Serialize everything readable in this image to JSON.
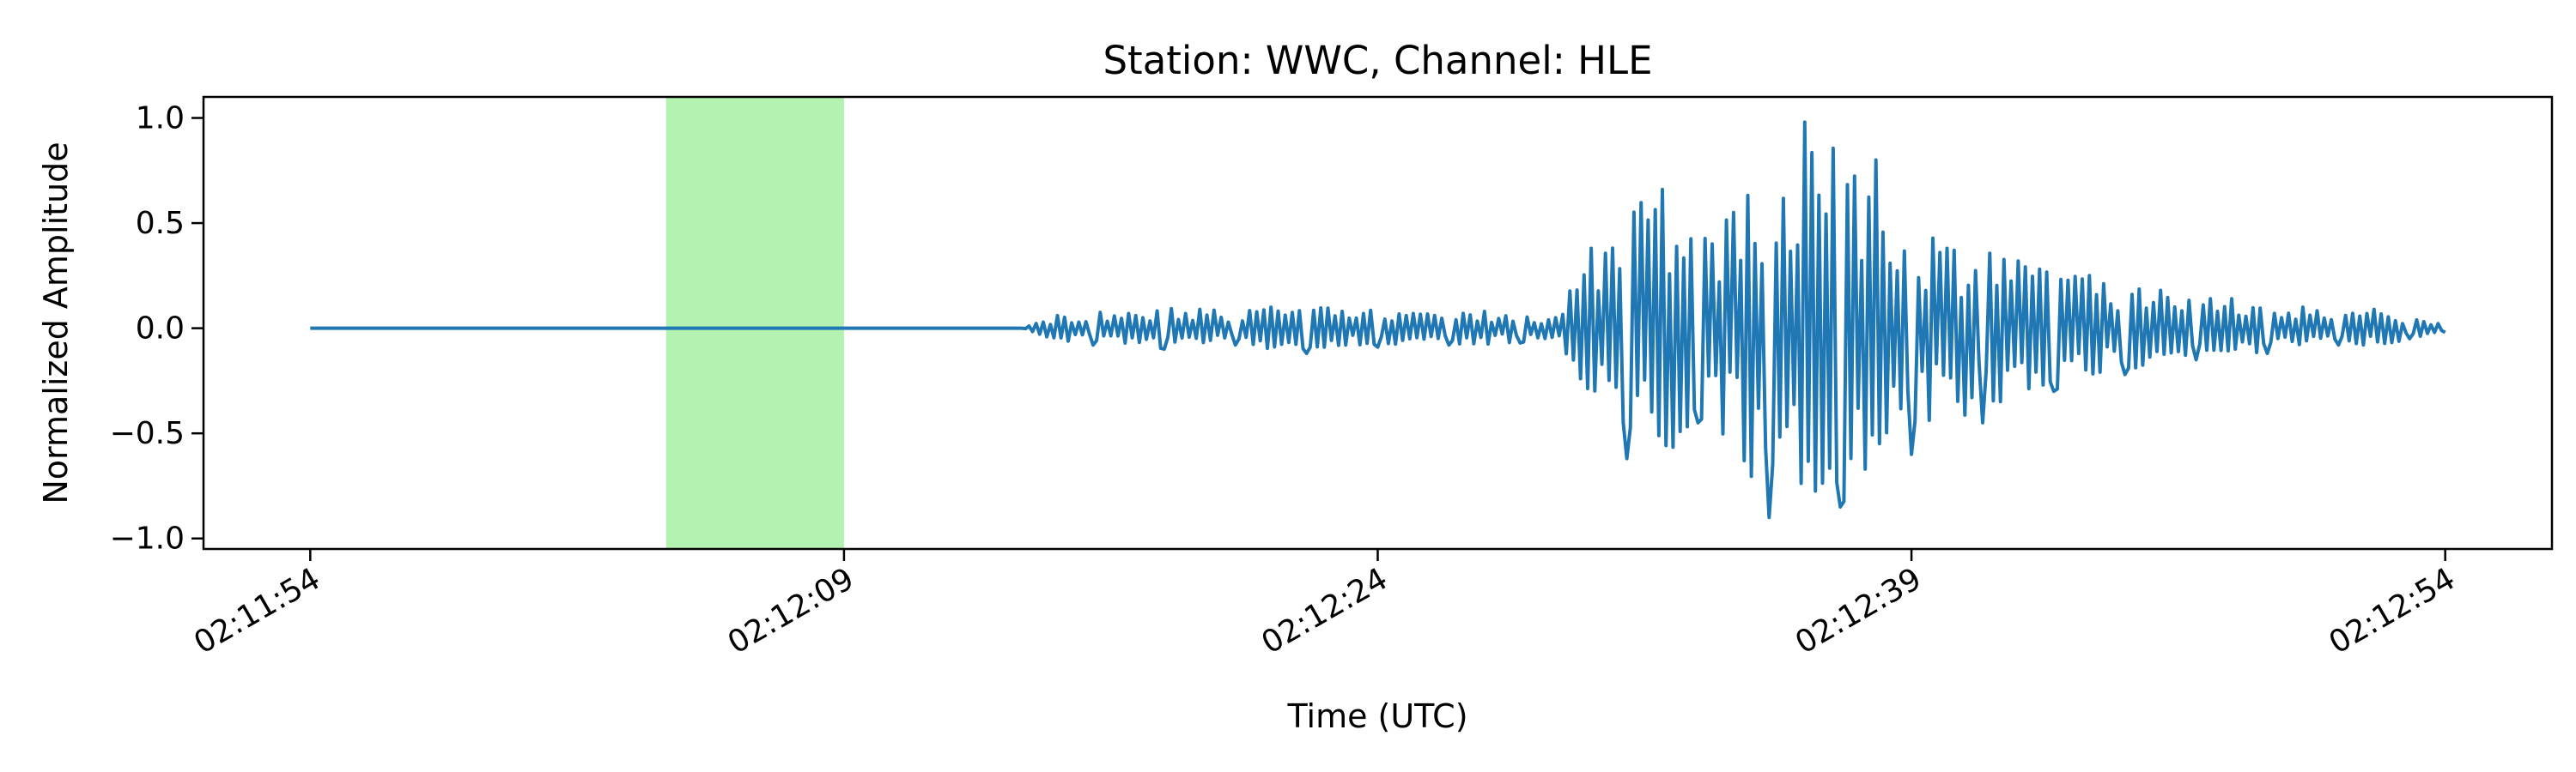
{
  "chart_data": {
    "type": "line",
    "title": "Station: WWC, Channel: HLE",
    "xlabel": "Time (UTC)",
    "ylabel": "Normalized Amplitude",
    "x_unit": "seconds",
    "xlim": [
      "02:11:51",
      "02:12:57"
    ],
    "ylim": [
      -1.05,
      1.1
    ],
    "grid": false,
    "legend": "none",
    "x_ticks": [
      {
        "value": "02:11:54",
        "label": "02:11:54"
      },
      {
        "value": "02:12:09",
        "label": "02:12:09"
      },
      {
        "value": "02:12:24",
        "label": "02:12:24"
      },
      {
        "value": "02:12:39",
        "label": "02:12:39"
      },
      {
        "value": "02:12:54",
        "label": "02:12:54"
      }
    ],
    "y_ticks": [
      {
        "value": -1.0,
        "label": "−1.0"
      },
      {
        "value": -0.5,
        "label": "−0.5"
      },
      {
        "value": 0.0,
        "label": "0.0"
      },
      {
        "value": 0.5,
        "label": "0.5"
      },
      {
        "value": 1.0,
        "label": "1.0"
      }
    ],
    "highlight_span": {
      "start": "02:12:04",
      "end": "02:12:09",
      "color": "#b3f2b1"
    },
    "series": [
      {
        "color": "#1f77b4",
        "x": [
          "02:11:54",
          "02:12:05",
          "02:12:14",
          "02:12:15",
          "02:12:16",
          "02:12:17",
          "02:12:18",
          "02:12:19",
          "02:12:20",
          "02:12:21",
          "02:12:22",
          "02:12:23",
          "02:12:24",
          "02:12:25",
          "02:12:26",
          "02:12:27",
          "02:12:28",
          "02:12:29",
          "02:12:30",
          "02:12:31",
          "02:12:32",
          "02:12:33",
          "02:12:34",
          "02:12:35",
          "02:12:36",
          "02:12:37",
          "02:12:38",
          "02:12:39",
          "02:12:40",
          "02:12:41",
          "02:12:42",
          "02:12:43",
          "02:12:44",
          "02:12:45",
          "02:12:46",
          "02:12:47",
          "02:12:48",
          "02:12:49",
          "02:12:50",
          "02:12:51",
          "02:12:52",
          "02:12:53",
          "02:12:54"
        ],
        "y": [
          0.0,
          0.0,
          0.0,
          0.06,
          -0.08,
          0.07,
          -0.1,
          0.09,
          -0.08,
          0.1,
          -0.12,
          0.08,
          -0.09,
          0.07,
          -0.08,
          0.08,
          -0.07,
          0.05,
          0.38,
          -0.62,
          0.66,
          -0.45,
          0.55,
          -0.9,
          0.98,
          -0.85,
          0.8,
          -0.6,
          0.38,
          -0.45,
          0.32,
          -0.3,
          0.25,
          -0.22,
          0.18,
          -0.15,
          0.14,
          -0.12,
          0.1,
          -0.08,
          0.09,
          -0.05,
          -0.02
        ]
      }
    ]
  }
}
